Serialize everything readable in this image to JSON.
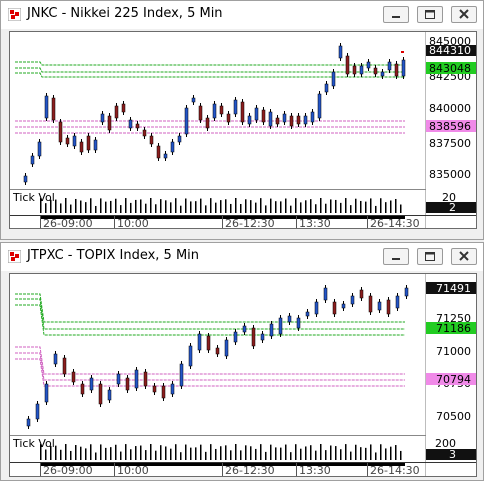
{
  "windows": [
    {
      "title": "JNKC - Nikkei 225 Index, 5 Min",
      "price_labels": [
        "845000",
        "842500",
        "840000",
        "837500",
        "835000"
      ],
      "last_price": "844310",
      "green_level": "843048",
      "pink_level": "838596",
      "volume_label": "Tick Vol",
      "volume_scale": "20",
      "volume_value": "2",
      "time_labels": [
        "26-09:00",
        "10:00",
        "26-12:30",
        "13:30",
        "26-14:30"
      ],
      "colors": {
        "up": "#2456c8",
        "down": "#8b1e1e",
        "green": "#22aa22",
        "pink": "#d060c0"
      }
    },
    {
      "title": "JTPXC - TOPIX Index, 5 Min",
      "price_labels": [
        "71250",
        "71000",
        "70750",
        "70500"
      ],
      "last_price": "71491",
      "green_level": "71186",
      "pink_level": "70794",
      "volume_label": "Tick Vol",
      "volume_scale": "200",
      "volume_value": "3",
      "time_labels": [
        "26-09:00",
        "10:00",
        "26-12:30",
        "13:30",
        "26-14:30"
      ],
      "colors": {
        "up": "#2456c8",
        "down": "#8b1e1e",
        "green": "#22aa22",
        "pink": "#d060c0"
      }
    }
  ]
}
